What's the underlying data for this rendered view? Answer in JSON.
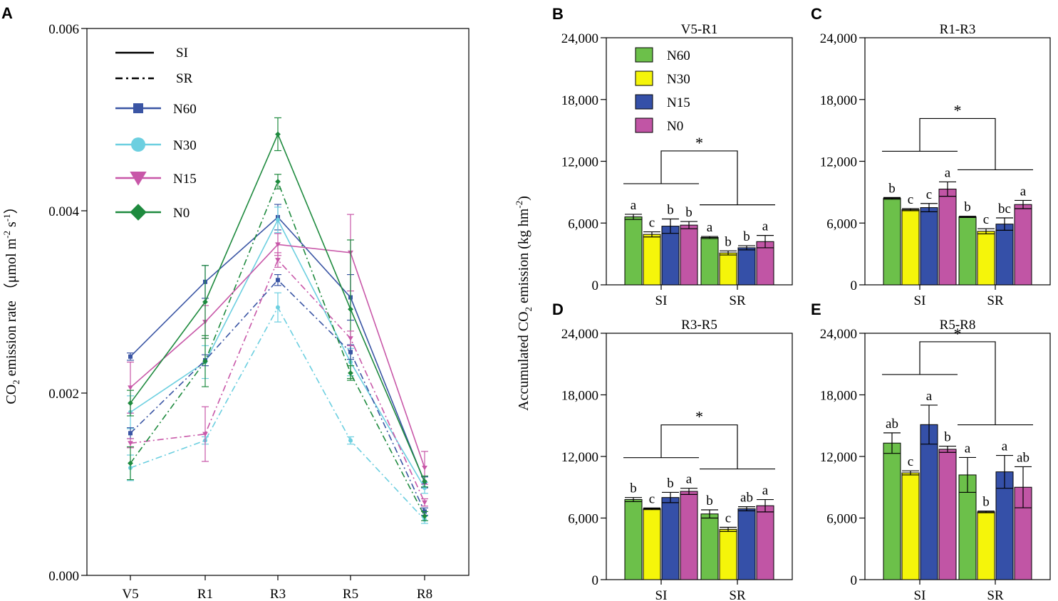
{
  "chart_data": [
    {
      "panel": "A",
      "type": "line",
      "title": "",
      "xlabel": "",
      "ylabel": {
        "main": "CO",
        "sub": "2",
        "rest": " emission rate （μmol m",
        "sup1": "-2",
        "mid": " s",
        "sup2": "-1",
        "end": "）"
      },
      "categories": [
        "V5",
        "R1",
        "R3",
        "R5",
        "R8"
      ],
      "ylim": [
        0,
        0.006
      ],
      "yticks": [
        0.0,
        0.002,
        0.004,
        0.006
      ],
      "yticklabels": [
        "0.000",
        "0.002",
        "0.004",
        "0.006"
      ],
      "legend_items": [
        {
          "label": "SI",
          "style": "solid"
        },
        {
          "label": "SR",
          "style": "dashdot"
        },
        {
          "label": "N60",
          "marker": "square",
          "color": "#3a55a4"
        },
        {
          "label": "N30",
          "marker": "circle",
          "color": "#6ccfe0"
        },
        {
          "label": "N15",
          "marker": "triangle-down",
          "color": "#c857a8"
        },
        {
          "label": "N0",
          "marker": "diamond",
          "color": "#1e8a3e"
        }
      ],
      "series": [
        {
          "name": "N60",
          "water": "SI",
          "color": "#3a55a4",
          "values": [
            0.0024,
            0.00322,
            0.00393,
            0.00305,
            0.00102
          ],
          "errors": [
            4e-05,
            0.00018,
            0.00014,
            0.00025,
            6e-05
          ]
        },
        {
          "name": "N30",
          "water": "SI",
          "color": "#6ccfe0",
          "values": [
            0.00179,
            0.00234,
            0.0039,
            0.00234,
            0.00096
          ],
          "errors": [
            0.00018,
            0.00018,
            0.00014,
            0.00015,
            6e-05
          ]
        },
        {
          "name": "N15",
          "water": "SI",
          "color": "#c857a8",
          "values": [
            0.00206,
            0.00278,
            0.00363,
            0.00354,
            0.00118
          ],
          "errors": [
            0.00028,
            0.00018,
            0.00012,
            0.00042,
            0.00018
          ]
        },
        {
          "name": "N0",
          "water": "SI",
          "color": "#1e8a3e",
          "values": [
            0.00189,
            0.003,
            0.00484,
            0.00292,
            0.00103
          ],
          "errors": [
            0.00014,
            0.0004,
            0.00018,
            0.00076,
            6e-05
          ]
        },
        {
          "name": "N60",
          "water": "SR",
          "color": "#3a55a4",
          "values": [
            0.00156,
            0.00236,
            0.00324,
            0.00245,
            0.0007
          ],
          "errors": [
            6e-05,
            6e-05,
            6e-05,
            8e-05,
            4e-05
          ]
        },
        {
          "name": "N30",
          "water": "SR",
          "color": "#6ccfe0",
          "values": [
            0.00118,
            0.00148,
            0.00294,
            0.00148,
            0.00061
          ],
          "errors": [
            0.00014,
            4e-05,
            0.00016,
            4e-05,
            4e-05
          ]
        },
        {
          "name": "N15",
          "water": "SR",
          "color": "#c857a8",
          "values": [
            0.00145,
            0.00155,
            0.00346,
            0.0026,
            0.0008
          ],
          "errors": [
            5e-05,
            0.0003,
            8e-05,
            8e-05,
            4e-05
          ]
        },
        {
          "name": "N0",
          "water": "SR",
          "color": "#1e8a3e",
          "values": [
            0.00123,
            0.00235,
            0.00432,
            0.00222,
            0.00065
          ],
          "errors": [
            0.00018,
            0.00028,
            8e-05,
            8e-05,
            5e-05
          ]
        }
      ]
    },
    {
      "panel": "B",
      "type": "bar",
      "title": "V5-R1",
      "groups": [
        "SI",
        "SR"
      ],
      "series_names": [
        "N60",
        "N30",
        "N15",
        "N0"
      ],
      "ylim": [
        0,
        24000
      ],
      "yticklabels": [
        "0",
        "6,000",
        "12,000",
        "18,000",
        "24,000"
      ],
      "values": [
        [
          6600,
          4900,
          5700,
          5800
        ],
        [
          4600,
          3100,
          3600,
          4200
        ]
      ],
      "errors": [
        [
          250,
          250,
          700,
          350
        ],
        [
          100,
          200,
          200,
          600
        ]
      ],
      "letters": [
        [
          "a",
          "c",
          "b",
          "b"
        ],
        [
          "a",
          "b",
          "b",
          "a"
        ]
      ],
      "significance": "*",
      "legend": true
    },
    {
      "panel": "C",
      "type": "bar",
      "title": "R1-R3",
      "groups": [
        "SI",
        "SR"
      ],
      "series_names": [
        "N60",
        "N30",
        "N15",
        "N0"
      ],
      "ylim": [
        0,
        24000
      ],
      "yticklabels": [
        "0",
        "6,000",
        "12,000",
        "18,000",
        "24,000"
      ],
      "values": [
        [
          8400,
          7300,
          7500,
          9300
        ],
        [
          6600,
          5200,
          5900,
          7800
        ]
      ],
      "errors": [
        [
          80,
          100,
          400,
          700
        ],
        [
          60,
          250,
          600,
          400
        ]
      ],
      "letters": [
        [
          "b",
          "c",
          "c",
          "a"
        ],
        [
          "b",
          "c",
          "bc",
          "a"
        ]
      ],
      "significance": "*",
      "legend": false
    },
    {
      "panel": "D",
      "type": "bar",
      "title": "R3-R5",
      "groups": [
        "SI",
        "SR"
      ],
      "series_names": [
        "N60",
        "N30",
        "N15",
        "N0"
      ],
      "ylim": [
        0,
        24000
      ],
      "yticklabels": [
        "0",
        "6,000",
        "12,000",
        "18,000",
        "24,000"
      ],
      "values": [
        [
          7800,
          6900,
          8000,
          8600
        ],
        [
          6400,
          4900,
          6900,
          7200
        ]
      ],
      "errors": [
        [
          200,
          80,
          500,
          300
        ],
        [
          400,
          200,
          200,
          600
        ]
      ],
      "letters": [
        [
          "b",
          "c",
          "b",
          "a"
        ],
        [
          "b",
          "c",
          "ab",
          "a"
        ]
      ],
      "significance": "*",
      "legend": false
    },
    {
      "panel": "E",
      "type": "bar",
      "title": "R5-R8",
      "groups": [
        "SI",
        "SR"
      ],
      "series_names": [
        "N60",
        "N30",
        "N15",
        "N0"
      ],
      "ylim": [
        0,
        24000
      ],
      "yticklabels": [
        "0",
        "6,000",
        "12,000",
        "18,000",
        "24,000"
      ],
      "values": [
        [
          13300,
          10400,
          15100,
          12700
        ],
        [
          10200,
          6600,
          10500,
          9000
        ]
      ],
      "errors": [
        [
          1000,
          200,
          1900,
          300
        ],
        [
          1700,
          80,
          1600,
          2000
        ]
      ],
      "letters": [
        [
          "ab",
          "c",
          "a",
          "b"
        ],
        [
          "a",
          "b",
          "a",
          "ab"
        ]
      ],
      "significance": "*",
      "legend": false
    }
  ],
  "shared": {
    "bar_colors": {
      "N60": "#6cc04a",
      "N30": "#f5f50a",
      "N15": "#3550a8",
      "N0": "#c155a5"
    },
    "bar_ylabel": {
      "main": "Accumulated CO",
      "sub": "2",
      "rest": " emission (kg hm",
      "sup": "-2",
      "end": ")"
    }
  }
}
